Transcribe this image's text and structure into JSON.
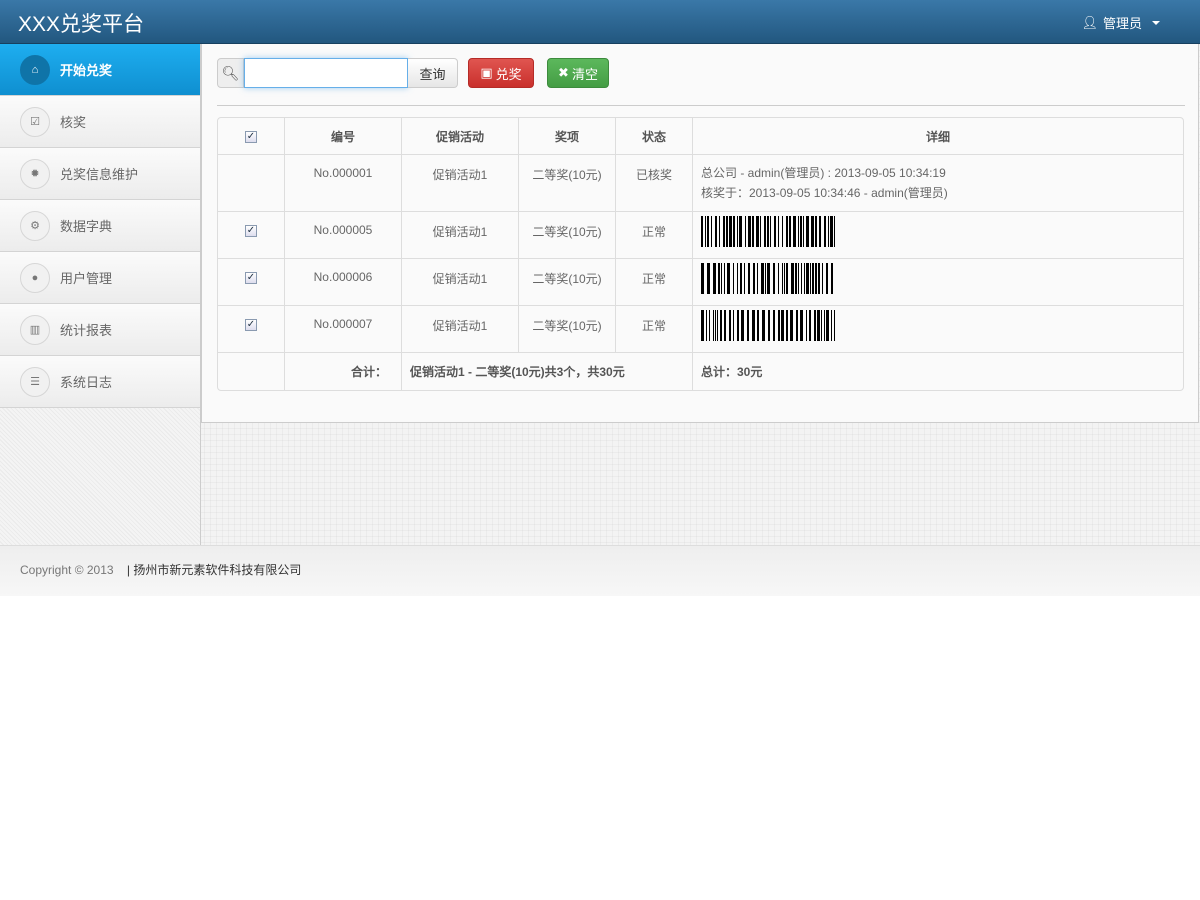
{
  "header": {
    "brand": "XXX兑奖平台",
    "user": "管理员",
    "user_icon": "user-icon"
  },
  "sidebar": {
    "items": [
      {
        "label": "开始兑奖",
        "icon": "home-icon",
        "glyph": "⌂",
        "active": true
      },
      {
        "label": "核奖",
        "icon": "check-icon",
        "glyph": "☑"
      },
      {
        "label": "兑奖信息维护",
        "icon": "cog-icon",
        "glyph": "✹"
      },
      {
        "label": "数据字典",
        "icon": "cogs-icon",
        "glyph": "⚙"
      },
      {
        "label": "用户管理",
        "icon": "user-icon",
        "glyph": "●"
      },
      {
        "label": "统计报表",
        "icon": "bar-chart-icon",
        "glyph": "▥"
      },
      {
        "label": "系统日志",
        "icon": "list-icon",
        "glyph": "☰"
      }
    ]
  },
  "toolbar": {
    "search_value": "",
    "search_placeholder": "",
    "query": "查询",
    "redeem": "兑奖",
    "clear": "清空"
  },
  "table": {
    "headers": [
      "编号",
      "促销活动",
      "奖项",
      "状态",
      "详细"
    ],
    "rows": [
      {
        "checkbox": false,
        "id": "No.000001",
        "activity": "促销活动1",
        "prize": "二等奖(10元)",
        "status": "已核奖",
        "detail1": "总公司 - admin(管理员) : 2013-09-05 10:34:19",
        "detail2": "核奖于：2013-09-05 10:34:46 - admin(管理员)"
      },
      {
        "checkbox": true,
        "id": "No.000005",
        "activity": "促销活动1",
        "prize": "二等奖(10元)",
        "status": "正常",
        "barcode": true
      },
      {
        "checkbox": true,
        "id": "No.000006",
        "activity": "促销活动1",
        "prize": "二等奖(10元)",
        "status": "正常",
        "barcode": true
      },
      {
        "checkbox": true,
        "id": "No.000007",
        "activity": "促销活动1",
        "prize": "二等奖(10元)",
        "status": "正常",
        "barcode": true
      }
    ],
    "summary": {
      "label": "合计：",
      "text": "促销活动1 - 二等奖(10元)共3个，共30元",
      "total": "总计：30元"
    }
  },
  "footer": {
    "copyright": "Copyright © 2013",
    "company": "| 扬州市新元素软件科技有限公司"
  }
}
